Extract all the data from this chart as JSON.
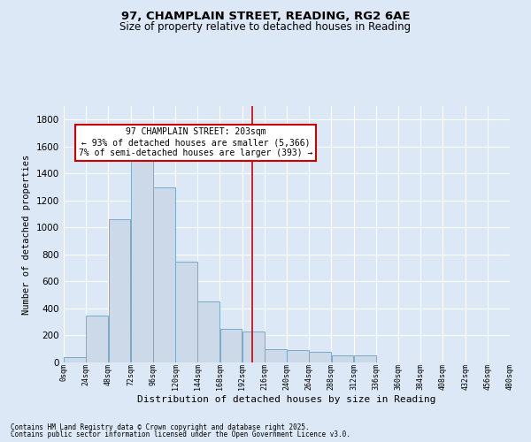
{
  "title_line1": "97, CHAMPLAIN STREET, READING, RG2 6AE",
  "title_line2": "Size of property relative to detached houses in Reading",
  "xlabel": "Distribution of detached houses by size in Reading",
  "ylabel": "Number of detached properties",
  "annotation_line1": "97 CHAMPLAIN STREET: 203sqm",
  "annotation_line2": "← 93% of detached houses are smaller (5,366)",
  "annotation_line3": "7% of semi-detached houses are larger (393) →",
  "property_size": 203,
  "bin_width": 24,
  "bin_starts": [
    0,
    24,
    48,
    72,
    96,
    120,
    144,
    168,
    192,
    216,
    240,
    264,
    288,
    312,
    336,
    360,
    384,
    408,
    432,
    456
  ],
  "bar_values": [
    40,
    350,
    1060,
    1500,
    1300,
    750,
    450,
    250,
    230,
    100,
    90,
    80,
    55,
    50,
    0,
    0,
    0,
    0,
    0,
    0
  ],
  "bar_facecolor": "#ccd9e8",
  "bar_edgecolor": "#7aaac8",
  "vline_color": "#cc0000",
  "vline_x": 203,
  "annotation_box_edgecolor": "#cc0000",
  "annotation_box_facecolor": "#ffffff",
  "background_color": "#dce8f5",
  "plot_bg_color": "#dce8f5",
  "ylim_max": 1900,
  "yticks": [
    0,
    200,
    400,
    600,
    800,
    1000,
    1200,
    1400,
    1600,
    1800
  ],
  "grid_color": "#ffffff",
  "footer_line1": "Contains HM Land Registry data © Crown copyright and database right 2025.",
  "footer_line2": "Contains public sector information licensed under the Open Government Licence v3.0."
}
